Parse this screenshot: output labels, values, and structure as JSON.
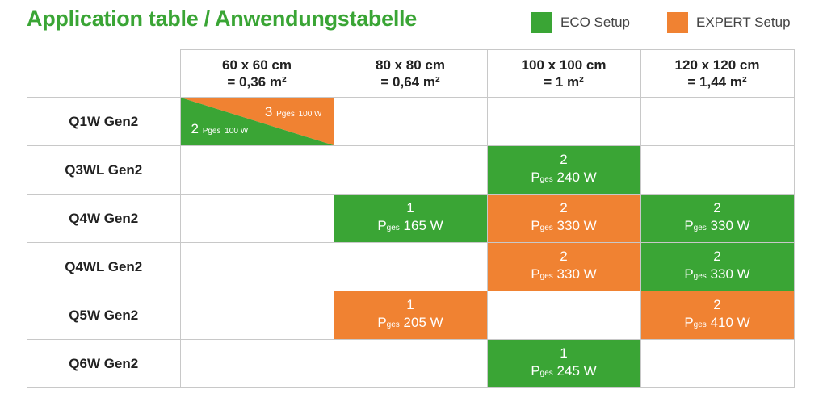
{
  "title": "Application table / Anwendungstabelle",
  "legend": [
    {
      "label": "ECO Setup",
      "color": "#3aa535"
    },
    {
      "label": "EXPERT Setup",
      "color": "#f08232"
    }
  ],
  "columns": [
    {
      "line1": "60 x 60 cm",
      "line2": "= 0,36 m²"
    },
    {
      "line1": "80 x 80 cm",
      "line2": "= 0,64 m²"
    },
    {
      "line1": "100 x 100 cm",
      "line2": "= 1 m²"
    },
    {
      "line1": "120 x 120 cm",
      "line2": "= 1,44 m²"
    }
  ],
  "power_prefix": "P",
  "power_sub": "ges",
  "rows": [
    {
      "label": "Q1W Gen2",
      "cells": [
        {
          "type": "split",
          "expert": {
            "count": "3",
            "power": "100 W"
          },
          "eco": {
            "count": "2",
            "power": "100 W"
          }
        },
        {
          "type": "empty"
        },
        {
          "type": "empty"
        },
        {
          "type": "empty"
        }
      ]
    },
    {
      "label": "Q3WL Gen2",
      "cells": [
        {
          "type": "empty"
        },
        {
          "type": "empty"
        },
        {
          "type": "eco",
          "count": "2",
          "power": "240 W"
        },
        {
          "type": "empty"
        }
      ]
    },
    {
      "label": "Q4W Gen2",
      "cells": [
        {
          "type": "empty"
        },
        {
          "type": "eco",
          "count": "1",
          "power": "165 W"
        },
        {
          "type": "expert",
          "count": "2",
          "power": "330 W"
        },
        {
          "type": "eco",
          "count": "2",
          "power": "330 W"
        }
      ]
    },
    {
      "label": "Q4WL Gen2",
      "cells": [
        {
          "type": "empty"
        },
        {
          "type": "empty"
        },
        {
          "type": "expert",
          "count": "2",
          "power": "330 W"
        },
        {
          "type": "eco",
          "count": "2",
          "power": "330 W"
        }
      ]
    },
    {
      "label": "Q5W Gen2",
      "cells": [
        {
          "type": "empty"
        },
        {
          "type": "expert",
          "count": "1",
          "power": "205 W"
        },
        {
          "type": "empty"
        },
        {
          "type": "expert",
          "count": "2",
          "power": "410 W"
        }
      ]
    },
    {
      "label": "Q6W Gen2",
      "cells": [
        {
          "type": "empty"
        },
        {
          "type": "empty"
        },
        {
          "type": "eco",
          "count": "1",
          "power": "245 W"
        },
        {
          "type": "empty"
        }
      ]
    }
  ]
}
